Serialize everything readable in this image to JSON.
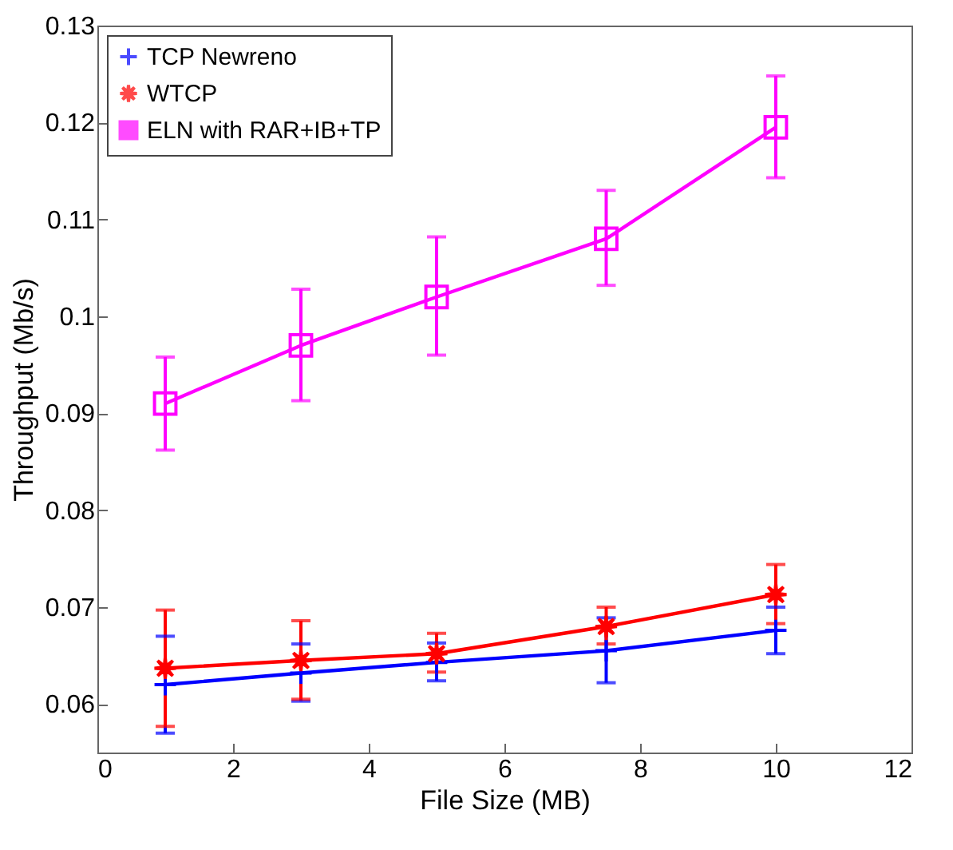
{
  "chart_data": {
    "type": "line",
    "xlabel": "File Size (MB)",
    "ylabel": "Throughput (Mb/s)",
    "x": [
      1,
      3,
      5,
      7.5,
      10
    ],
    "series": [
      {
        "name": "TCP Newreno",
        "color": "#0000ff",
        "marker": "cross",
        "values": [
          0.062,
          0.0632,
          0.0643,
          0.0655,
          0.0676
        ],
        "errors": [
          [
            0.057,
            0.067
          ],
          [
            0.0603,
            0.0662
          ],
          [
            0.0624,
            0.0663
          ],
          [
            0.0622,
            0.0689
          ],
          [
            0.0652,
            0.07
          ]
        ]
      },
      {
        "name": "WTCP",
        "color": "#ff0000",
        "marker": "star",
        "values": [
          0.0637,
          0.0645,
          0.0652,
          0.068,
          0.0713
        ],
        "errors": [
          [
            0.0577,
            0.0697
          ],
          [
            0.0605,
            0.0686
          ],
          [
            0.0633,
            0.0673
          ],
          [
            0.0662,
            0.07
          ],
          [
            0.0683,
            0.0744
          ]
        ]
      },
      {
        "name": "ELN with RAR+IB+TP",
        "color": "#ff00ff",
        "marker": "square",
        "values": [
          0.091,
          0.097,
          0.102,
          0.108,
          0.1195
        ],
        "errors": [
          [
            0.0862,
            0.0958
          ],
          [
            0.0913,
            0.1028
          ],
          [
            0.096,
            0.1082
          ],
          [
            0.1032,
            0.113
          ],
          [
            0.1143,
            0.1248
          ]
        ]
      }
    ],
    "xlim": [
      0,
      12
    ],
    "xticks": [
      0,
      2,
      4,
      6,
      8,
      10,
      12
    ],
    "ylim": [
      0.055,
      0.13
    ],
    "yticks": [
      0.06,
      0.07,
      0.08,
      0.09,
      0.1,
      0.11,
      0.12,
      0.13
    ],
    "legend": "top left",
    "grid": false,
    "line_style": "solid"
  }
}
